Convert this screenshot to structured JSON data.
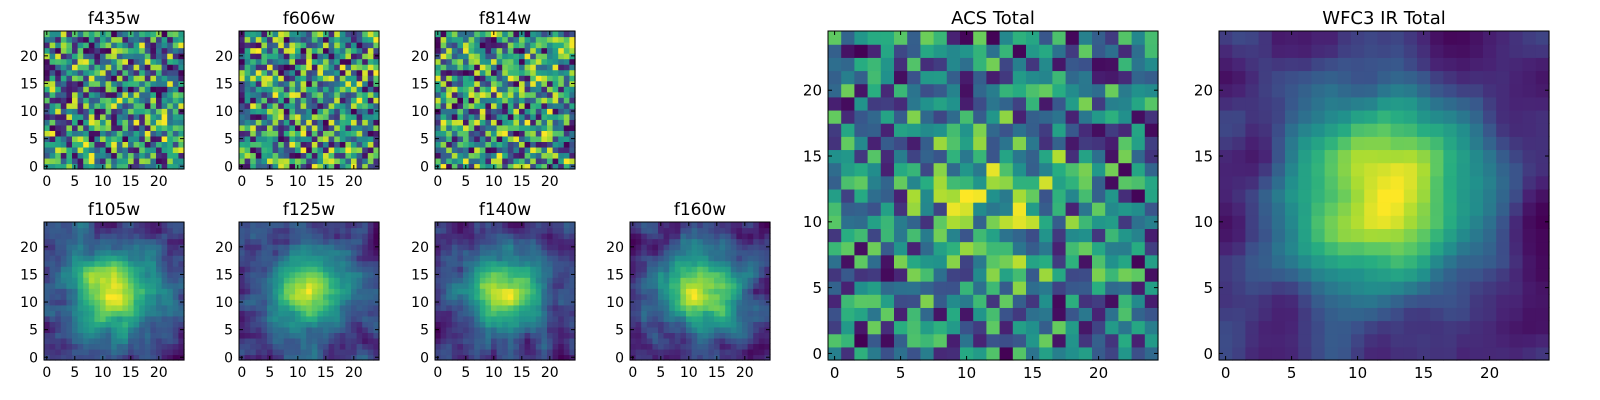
{
  "chart_data": [
    {
      "type": "heatmap",
      "title": "f435w",
      "xticks": [
        0,
        5,
        10,
        15,
        20
      ],
      "yticks": [
        0,
        5,
        10,
        15,
        20
      ],
      "xlim": [
        0,
        24
      ],
      "ylim": [
        0,
        24
      ],
      "grid": false,
      "colormap": "viridis",
      "size": 25,
      "pattern": "noise",
      "seed": 11
    },
    {
      "type": "heatmap",
      "title": "f606w",
      "xticks": [
        0,
        5,
        10,
        15,
        20
      ],
      "yticks": [
        0,
        5,
        10,
        15,
        20
      ],
      "xlim": [
        0,
        24
      ],
      "ylim": [
        0,
        24
      ],
      "grid": false,
      "colormap": "viridis",
      "size": 25,
      "pattern": "noise",
      "seed": 23
    },
    {
      "type": "heatmap",
      "title": "f814w",
      "xticks": [
        0,
        5,
        10,
        15,
        20
      ],
      "yticks": [
        0,
        5,
        10,
        15,
        20
      ],
      "xlim": [
        0,
        24
      ],
      "ylim": [
        0,
        24
      ],
      "grid": false,
      "colormap": "viridis",
      "size": 25,
      "pattern": "noise",
      "seed": 37
    },
    {
      "type": "heatmap",
      "title": "f105w",
      "xticks": [
        0,
        5,
        10,
        15,
        20
      ],
      "yticks": [
        0,
        5,
        10,
        15,
        20
      ],
      "xlim": [
        0,
        24
      ],
      "ylim": [
        0,
        24
      ],
      "grid": false,
      "colormap": "viridis",
      "size": 25,
      "pattern": "source",
      "seed": 41
    },
    {
      "type": "heatmap",
      "title": "f125w",
      "xticks": [
        0,
        5,
        10,
        15,
        20
      ],
      "yticks": [
        0,
        5,
        10,
        15,
        20
      ],
      "xlim": [
        0,
        24
      ],
      "ylim": [
        0,
        24
      ],
      "grid": false,
      "colormap": "viridis",
      "size": 25,
      "pattern": "source",
      "seed": 53
    },
    {
      "type": "heatmap",
      "title": "f140w",
      "xticks": [
        0,
        5,
        10,
        15,
        20
      ],
      "yticks": [
        0,
        5,
        10,
        15,
        20
      ],
      "xlim": [
        0,
        24
      ],
      "ylim": [
        0,
        24
      ],
      "grid": false,
      "colormap": "viridis",
      "size": 25,
      "pattern": "source",
      "seed": 67
    },
    {
      "type": "heatmap",
      "title": "f160w",
      "xticks": [
        0,
        5,
        10,
        15,
        20
      ],
      "yticks": [
        0,
        5,
        10,
        15,
        20
      ],
      "xlim": [
        0,
        24
      ],
      "ylim": [
        0,
        24
      ],
      "grid": false,
      "colormap": "viridis",
      "size": 25,
      "pattern": "source",
      "seed": 79
    },
    {
      "type": "heatmap",
      "title": "ACS Total",
      "xticks": [
        0,
        5,
        10,
        15,
        20
      ],
      "yticks": [
        0,
        5,
        10,
        15,
        20
      ],
      "xlim": [
        0,
        24
      ],
      "ylim": [
        0,
        24
      ],
      "grid": false,
      "colormap": "viridis",
      "size": 25,
      "pattern": "noise-weak-source",
      "seed": 97
    },
    {
      "type": "heatmap",
      "title": "WFC3 IR Total",
      "xticks": [
        0,
        5,
        10,
        15,
        20
      ],
      "yticks": [
        0,
        5,
        10,
        15,
        20
      ],
      "xlim": [
        0,
        24
      ],
      "ylim": [
        0,
        24
      ],
      "grid": false,
      "colormap": "viridis",
      "size": 25,
      "pattern": "smooth-source",
      "seed": 113
    }
  ]
}
